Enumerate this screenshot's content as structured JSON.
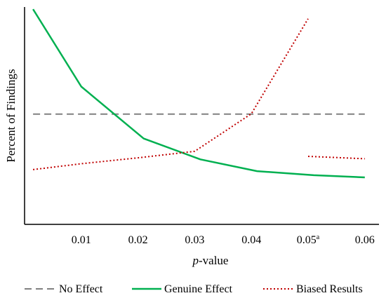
{
  "chart_data": {
    "type": "line",
    "xlabel_italic": "p",
    "xlabel_rest": "-value",
    "ylabel": "Percent of Findings",
    "xlim": [
      0.0,
      0.0625
    ],
    "ylim": [
      0,
      100
    ],
    "x_ticks": [
      {
        "value": 0.01,
        "label": "0.01",
        "sup": ""
      },
      {
        "value": 0.02,
        "label": "0.02",
        "sup": ""
      },
      {
        "value": 0.03,
        "label": "0.03",
        "sup": ""
      },
      {
        "value": 0.04,
        "label": "0.04",
        "sup": ""
      },
      {
        "value": 0.05,
        "label": "0.05",
        "sup": "a"
      },
      {
        "value": 0.06,
        "label": "0.06",
        "sup": ""
      }
    ],
    "series": [
      {
        "name": "No Effect",
        "color": "#808080",
        "style": "dashed",
        "segments": [
          [
            [
              0.0015,
              50.7
            ],
            [
              0.06,
              50.7
            ]
          ]
        ]
      },
      {
        "name": "Genuine Effect",
        "color": "#00b050",
        "style": "solid",
        "segments": [
          [
            [
              0.0015,
              99
            ],
            [
              0.01,
              63.4
            ],
            [
              0.021,
              39.5
            ],
            [
              0.031,
              29.9
            ],
            [
              0.041,
              24.5
            ],
            [
              0.051,
              22.6
            ],
            [
              0.06,
              21.6
            ]
          ]
        ]
      },
      {
        "name": "Biased Results",
        "color": "#c00000",
        "style": "dotted",
        "segments": [
          [
            [
              0.0015,
              25.2
            ],
            [
              0.01,
              27.9
            ],
            [
              0.02,
              30.6
            ],
            [
              0.03,
              33.6
            ],
            [
              0.04,
              50.9
            ],
            [
              0.05,
              94.6
            ]
          ],
          [
            [
              0.05,
              31.3
            ],
            [
              0.06,
              30.2
            ]
          ]
        ]
      }
    ],
    "legend_position": "bottom",
    "grid": false
  }
}
